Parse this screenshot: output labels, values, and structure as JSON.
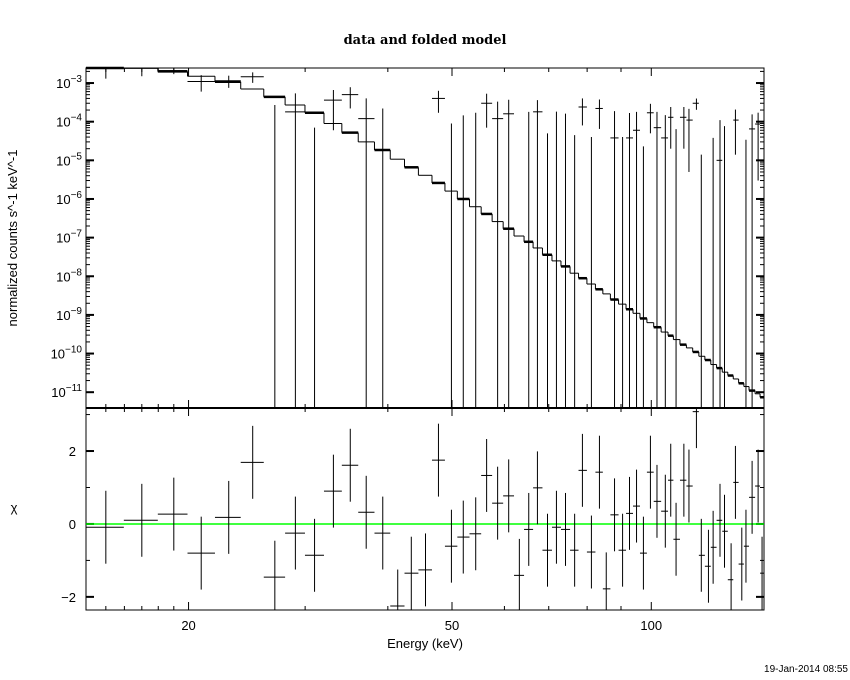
{
  "chart_data": [
    {
      "type": "line",
      "panel": "spectrum",
      "title": "data and folded model",
      "xlabel": "Energy (keV)",
      "ylabel": "normalized counts s^-1 keV^-1",
      "xscale": "log",
      "yscale": "log",
      "xlim": [
        14.0,
        148
      ],
      "ylim": [
        3.9e-12,
        0.00245
      ],
      "x_ticks": [
        20,
        50,
        100
      ],
      "x_tick_labels": [
        "20",
        "50",
        "100"
      ],
      "y_ticks": [
        0.001,
        0.0001,
        1e-05,
        1e-06,
        1e-07,
        1e-08,
        1e-09,
        1e-10,
        1e-11
      ],
      "y_tick_labels": [
        "10^-3",
        "10^-4",
        "10^-5",
        "10^-6",
        "10^-7",
        "10^-8",
        "10^-9",
        "10^-10",
        "10^-11"
      ],
      "energy_keV": [
        15.0,
        17.0,
        19.0,
        20.9,
        23.0,
        25.0,
        27.0,
        29.0,
        31.0,
        33.1,
        35.1,
        37.1,
        39.3,
        41.4,
        43.4,
        45.6,
        47.7,
        49.9,
        52.0,
        54.3,
        56.4,
        58.6,
        60.9,
        63.2,
        65.3,
        67.3,
        69.7,
        71.9,
        74.2,
        76.6,
        78.7,
        81.2,
        83.5,
        85.5,
        88.0,
        90.5,
        92.7,
        95.0,
        97.3,
        99.7,
        102,
        105,
        107,
        109,
        112,
        114,
        117,
        119,
        122,
        124,
        127,
        129,
        132,
        134,
        137,
        139,
        142,
        145,
        147
      ],
      "series": [
        {
          "name": "data",
          "values": [
            0.0024,
            0.0025,
            0.0021,
            0.0011,
            0.00115,
            0.00145,
            -0.0001,
            0.00018,
            -0.0001,
            0.00036,
            0.0005,
            0.00012,
            -5e-05,
            -0.0006,
            -0.00036,
            -0.00034,
            0.0004,
            -0.00014,
            -8.4e-05,
            -6e-05,
            0.0003,
            0.00012,
            0.00016,
            -0.0003,
            -3e-05,
            0.00018,
            -0.00014,
            -1.8e-05,
            -2.8e-05,
            -0.000115,
            0.00024,
            -0.00012,
            0.00022,
            -0.00027,
            3.8e-05,
            -0.00011,
            3.8e-05,
            6e-05,
            -9.2e-05,
            0.00017,
            7e-05,
            3.8e-05,
            0.00013,
            -4.6e-05,
            0.00013,
            0.00011,
            0.0003,
            -8.6e-05,
            -0.000116,
            -6.7e-05,
            1e-05,
            -1.9e-05,
            -0.00015,
            0.00011,
            -0.00011,
            -5.3e-05,
            6.5e-05,
            8.7e-05,
            -0.00011
          ],
          "errors": [
            0.0011,
            0.001,
            0.0004,
            0.0005,
            0.0004,
            0.00044,
            0.00037,
            0.00036,
            0.00017,
            0.0003,
            0.00028,
            0.00028,
            0.00027,
            0.00027,
            0.00027,
            0.00027,
            0.00023,
            0.00023,
            0.00023,
            0.00023,
            0.00023,
            0.00021,
            0.00021,
            0.00021,
            0.00021,
            0.00018,
            0.00019,
            0.0002,
            0.00019,
            0.00016,
            0.00016,
            0.00016,
            0.000155,
            0.00015,
            0.00015,
            0.00015,
            0.00013,
            0.00012,
            0.000115,
            0.00012,
            0.00011,
            0.00011,
            0.00011,
            0.00011,
            0.00011,
            0.000105,
            9.7e-05,
            0.0001,
            0.0001,
            0.000105,
            0.0001,
            9.6e-05,
            0.0001,
            9.6e-05,
            0.0001,
            8.7e-05,
            8.9e-05,
            8.4e-05,
            8e-05
          ]
        },
        {
          "name": "folded model",
          "values": [
            0.0025,
            0.0024,
            0.002,
            0.0015,
            0.00108,
            0.0007,
            0.00044,
            0.00027,
            0.00017,
            9e-05,
            5.2e-05,
            3e-05,
            1.85e-05,
            1.07e-05,
            6.6e-06,
            4.1e-06,
            2.6e-06,
            1.6e-06,
            1e-06,
            6.3e-07,
            4.1e-07,
            2.6e-07,
            1.7e-07,
            1.1e-07,
            7.8e-08,
            5.4e-08,
            3.6e-08,
            2.5e-08,
            1.8e-08,
            1.2e-08,
            8.9e-09,
            6.3e-09,
            4.6e-09,
            3.5e-09,
            2.5e-09,
            1.9e-09,
            1.4e-09,
            1.1e-09,
            8.1e-10,
            6.3e-10,
            4.8e-10,
            3.6e-10,
            2.9e-10,
            2.3e-10,
            1.7e-10,
            1.4e-10,
            1.1e-10,
            8.5e-11,
            6.8e-11,
            5.2e-11,
            4.2e-11,
            3.3e-11,
            2.7e-11,
            2.2e-11,
            1.7e-11,
            1.4e-11,
            1.1e-11,
            9.1e-12,
            7.4e-12
          ]
        }
      ]
    },
    {
      "type": "scatter",
      "panel": "residuals",
      "xlabel": "Energy (keV)",
      "ylabel": "χ",
      "xscale": "log",
      "xlim": [
        14.0,
        148
      ],
      "ylim": [
        -2.36,
        3.18
      ],
      "y_ticks": [
        2,
        0,
        -2
      ],
      "y_tick_labels": [
        "2",
        "0",
        "−2"
      ],
      "reference_line": 0,
      "reference_color": "#00ff00",
      "series": [
        {
          "name": "chi",
          "values": [
            -0.09,
            0.1,
            0.27,
            -0.8,
            0.18,
            1.69,
            -1.46,
            -0.25,
            -0.86,
            0.9,
            1.61,
            0.32,
            -0.25,
            -2.25,
            -1.35,
            -1.26,
            1.75,
            -0.61,
            -0.36,
            -0.27,
            1.33,
            0.57,
            0.77,
            -1.41,
            -0.15,
            0.99,
            -0.72,
            -0.09,
            -0.15,
            -0.72,
            1.47,
            -0.77,
            1.42,
            -1.78,
            0.25,
            -0.72,
            0.29,
            0.49,
            -0.8,
            1.42,
            0.62,
            0.35,
            1.2,
            -0.42,
            1.2,
            1.04,
            3.08,
            -0.86,
            -1.16,
            -0.64,
            0.1,
            -0.2,
            -1.53,
            1.14,
            -1.1,
            -0.61,
            0.73,
            1.04,
            -1.35
          ],
          "error": 1
        }
      ]
    }
  ],
  "timestamp": "19-Jan-2014 08:55"
}
